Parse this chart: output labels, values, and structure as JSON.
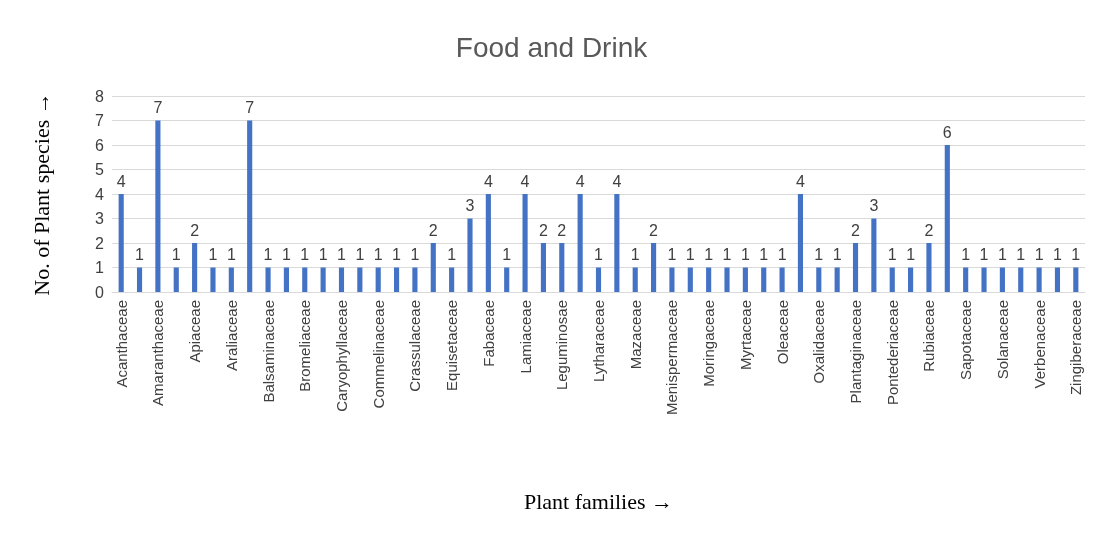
{
  "chart_data": {
    "type": "bar",
    "title": "Food and Drink",
    "xlabel": "Plant families →",
    "ylabel": "No. of Plant species →",
    "categories": [
      "Acanthaceae",
      null,
      "Amaranthaceae",
      null,
      "Apiaceae",
      null,
      "Araliaceae",
      null,
      "Balsaminaceae",
      null,
      "Bromeliaceae",
      null,
      "Caryophyllaceae",
      null,
      "Commelinaceae",
      null,
      "Crassulaceae",
      null,
      "Equisetaceae",
      null,
      "Fabaceae",
      null,
      "Lamiaceae",
      null,
      "Leguminosae",
      null,
      "Lytharaceae",
      null,
      "Mazaceae",
      null,
      "Menispermaceae",
      null,
      "Moringaceae",
      null,
      "Myrtaceae",
      null,
      "Oleaceae",
      null,
      "Oxalidaceae",
      null,
      "Plantaginaceae",
      null,
      "Pontederiaceae",
      null,
      "Rubiaceae",
      null,
      "Sapotaceae",
      null,
      "Solanaceae",
      null,
      "Verbenaceae",
      null,
      "Zingiberaceae"
    ],
    "values": [
      4,
      1,
      7,
      1,
      2,
      1,
      1,
      7,
      1,
      1,
      1,
      1,
      1,
      1,
      1,
      1,
      1,
      2,
      1,
      3,
      4,
      1,
      4,
      2,
      2,
      4,
      1,
      4,
      1,
      2,
      1,
      1,
      1,
      1,
      1,
      1,
      1,
      4,
      1,
      1,
      2,
      3,
      1,
      1,
      2,
      6,
      1,
      1,
      1,
      1,
      1,
      1,
      1
    ],
    "color": "#4472c4",
    "ylim": [
      0,
      8
    ],
    "yticks": [
      0,
      1,
      2,
      3,
      4,
      5,
      6,
      7,
      8
    ],
    "grid": "y",
    "data_labels": true
  }
}
